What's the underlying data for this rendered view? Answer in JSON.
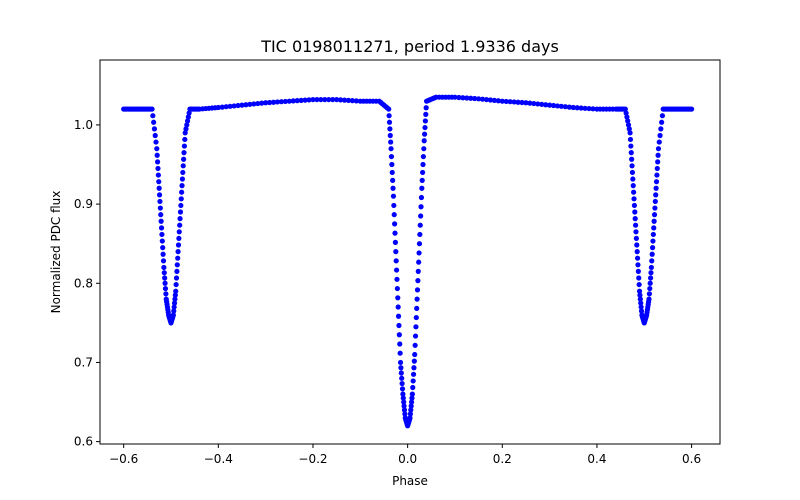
{
  "chart_data": {
    "type": "scatter",
    "title": "TIC 0198011271, period 1.9336 days",
    "xlabel": "Phase",
    "ylabel": "Normalized PDC flux",
    "xlim": [
      -0.65,
      0.66
    ],
    "ylim": [
      0.597,
      1.082
    ],
    "xticks": [
      -0.6,
      -0.4,
      -0.2,
      0.0,
      0.2,
      0.4,
      0.6
    ],
    "xtick_labels": [
      "−0.6",
      "−0.4",
      "−0.2",
      "0.0",
      "0.2",
      "0.4",
      "0.6"
    ],
    "yticks": [
      0.6,
      0.7,
      0.8,
      0.9,
      1.0
    ],
    "ytick_labels": [
      "0.6",
      "0.7",
      "0.8",
      "0.9",
      "1.0"
    ],
    "grid": false,
    "marker_color": "#0000ff",
    "series": [
      {
        "x": [
          -0.6,
          -0.58,
          -0.56,
          -0.54,
          -0.53,
          -0.525,
          -0.52,
          -0.515,
          -0.51,
          -0.505,
          -0.5,
          -0.495,
          -0.49,
          -0.485,
          -0.48,
          -0.475,
          -0.47,
          -0.46,
          -0.44,
          -0.4,
          -0.35,
          -0.3,
          -0.25,
          -0.2,
          -0.15,
          -0.1,
          -0.06,
          -0.04,
          -0.035,
          -0.03,
          -0.025,
          -0.02,
          -0.015,
          -0.01,
          -0.005,
          0.0,
          0.005,
          0.01,
          0.015,
          0.02,
          0.025,
          0.03,
          0.035,
          0.04,
          0.06,
          0.1,
          0.15,
          0.2,
          0.25,
          0.3,
          0.35,
          0.4,
          0.44,
          0.46,
          0.47,
          0.475,
          0.48,
          0.485,
          0.49,
          0.495,
          0.5,
          0.505,
          0.51,
          0.515,
          0.52,
          0.525,
          0.53,
          0.54,
          0.56,
          0.58,
          0.6
        ],
        "y": [
          1.02,
          1.02,
          1.02,
          1.02,
          0.97,
          0.92,
          0.87,
          0.82,
          0.78,
          0.76,
          0.75,
          0.76,
          0.79,
          0.84,
          0.89,
          0.94,
          0.99,
          1.02,
          1.02,
          1.022,
          1.025,
          1.028,
          1.03,
          1.032,
          1.032,
          1.03,
          1.03,
          1.02,
          0.97,
          0.91,
          0.84,
          0.77,
          0.7,
          0.66,
          0.63,
          0.62,
          0.63,
          0.66,
          0.71,
          0.78,
          0.85,
          0.92,
          0.98,
          1.03,
          1.035,
          1.035,
          1.033,
          1.03,
          1.028,
          1.025,
          1.022,
          1.02,
          1.02,
          1.02,
          0.99,
          0.94,
          0.89,
          0.84,
          0.79,
          0.76,
          0.75,
          0.76,
          0.78,
          0.82,
          0.87,
          0.92,
          0.97,
          1.02,
          1.02,
          1.02,
          1.02
        ]
      }
    ]
  }
}
